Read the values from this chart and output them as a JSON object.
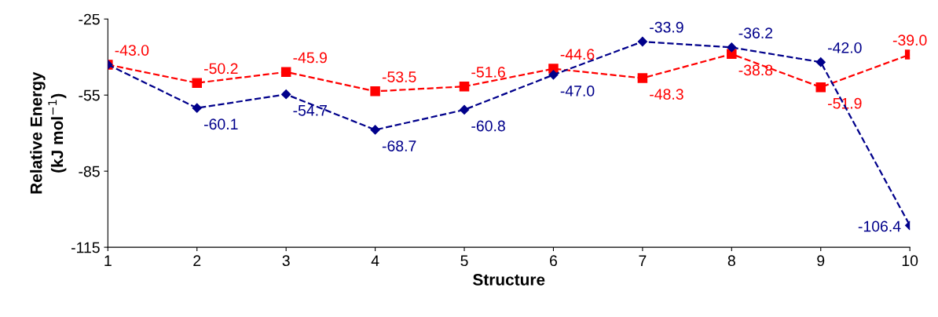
{
  "chart_data": {
    "type": "line",
    "xlabel": "Structure",
    "ylabel": "Relative Energy\n(kJ mol$^{−1}$)",
    "x": [
      1,
      2,
      3,
      4,
      5,
      6,
      7,
      8,
      9,
      10
    ],
    "xlim": [
      1,
      10
    ],
    "xticks": [
      1,
      2,
      3,
      4,
      5,
      6,
      7,
      8,
      9,
      10
    ],
    "ylim": [
      -115,
      -25
    ],
    "yticks": [
      -25,
      -55,
      -85,
      -115
    ],
    "grid": false,
    "legend": false,
    "line_style": "dashed",
    "series": [
      {
        "color": "#ff0000",
        "marker": "square",
        "values": [
          -43.0,
          -50.2,
          -45.9,
          -53.5,
          -51.6,
          -44.6,
          -48.3,
          -38.8,
          -51.9,
          -39.0
        ],
        "value_labels": [
          "-43.0",
          "-50.2",
          "-45.9",
          "-53.5",
          "-51.6",
          "-44.6",
          "-48.3",
          "-38.8",
          "-51.9",
          "-39.0"
        ]
      },
      {
        "color": "#00008b",
        "marker": "diamond",
        "values": [
          -43.0,
          -60.1,
          -54.7,
          -68.7,
          -60.8,
          -47.0,
          -33.9,
          -36.2,
          -42.0,
          -106.4
        ],
        "value_labels": [
          null,
          "-60.1",
          "-54.7",
          "-68.7",
          "-60.8",
          "-47.0",
          "-33.9",
          "-36.2",
          "-42.0",
          "-106.4"
        ]
      }
    ]
  }
}
